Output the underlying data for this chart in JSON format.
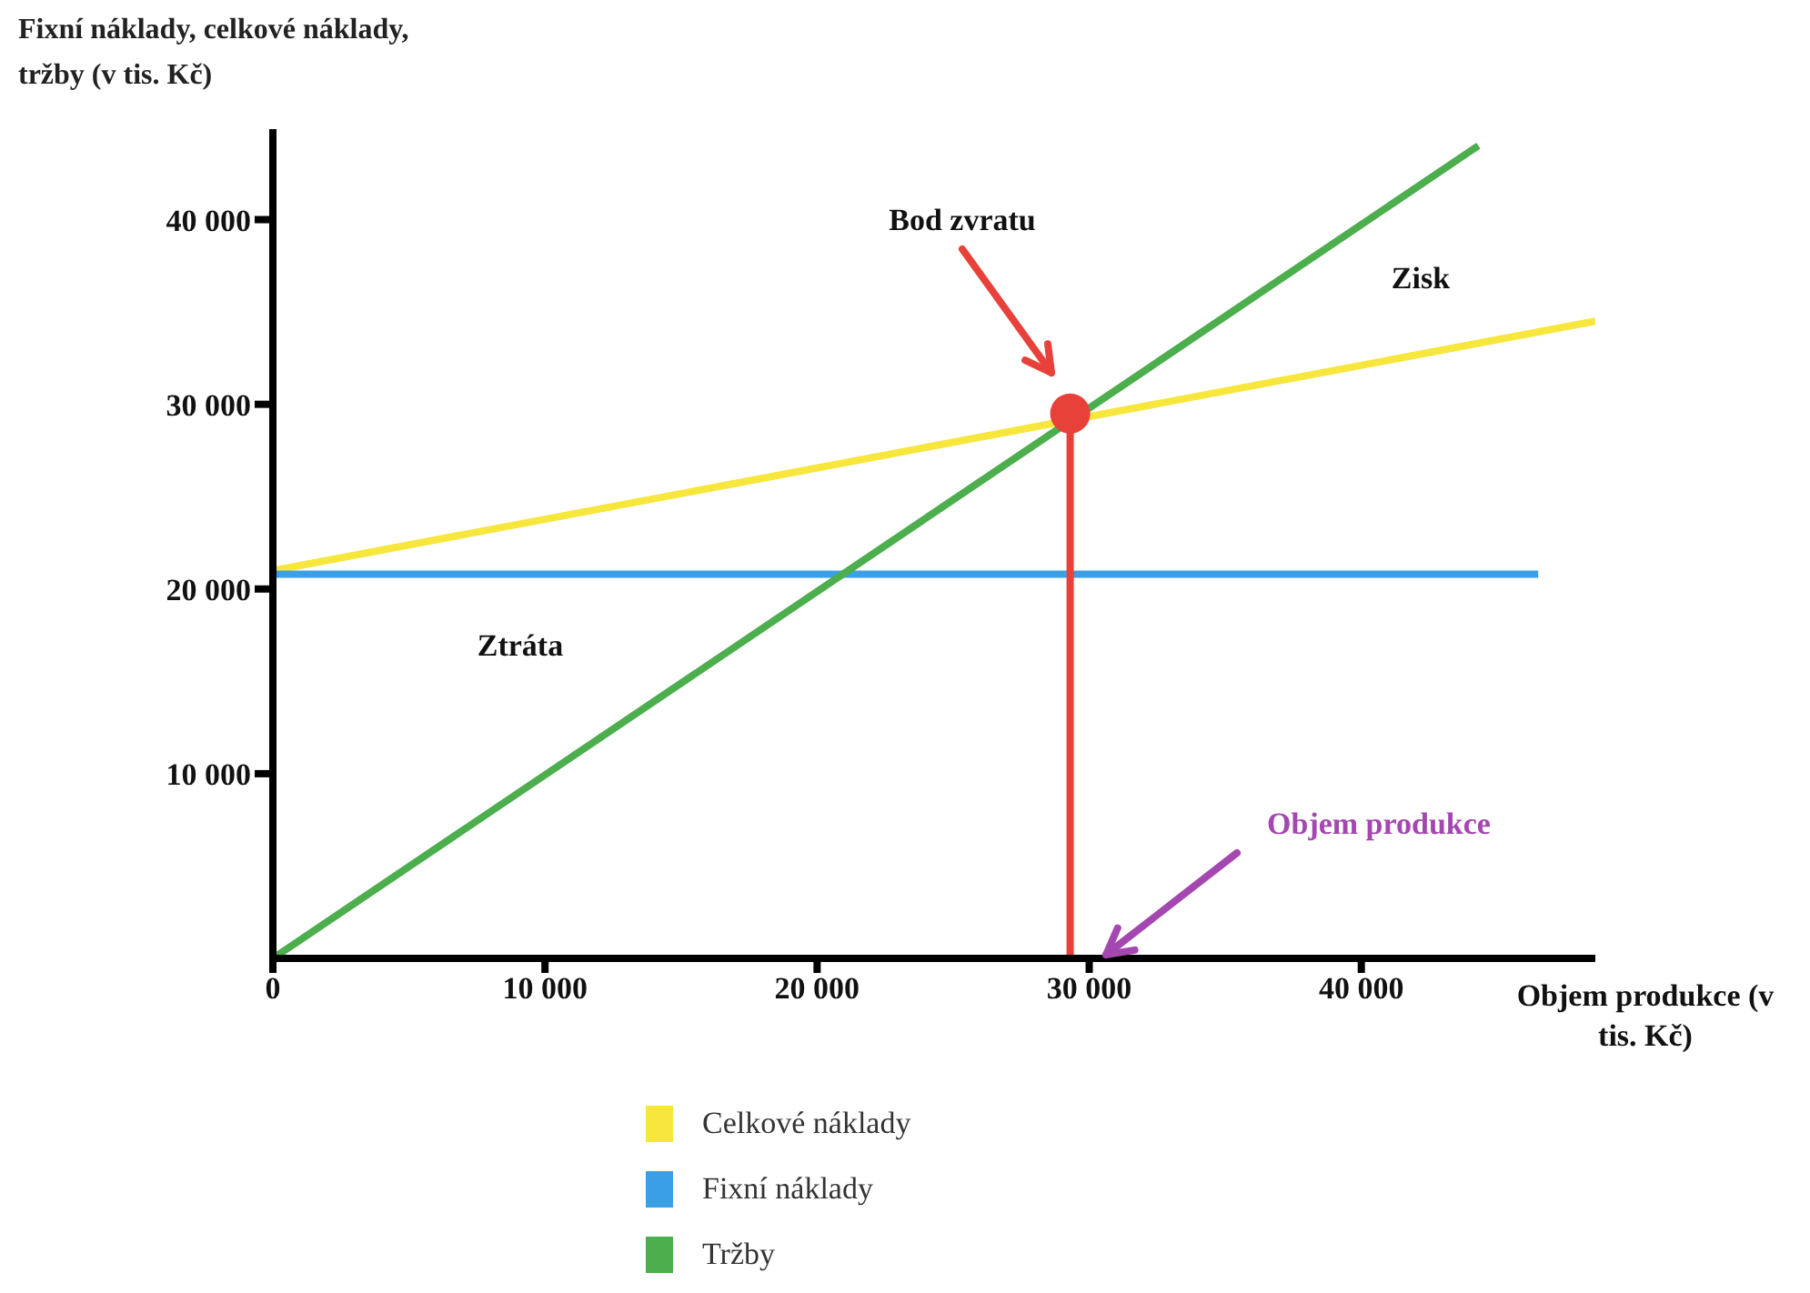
{
  "chart_data": {
    "type": "line",
    "ylabel": "Fixní náklady, celkové náklady, tržby (v tis. Kč)",
    "xlabel": "Objem produkce (v tis. Kč)",
    "xlim": [
      0,
      48600
    ],
    "ylim": [
      0,
      44900
    ],
    "xticks": [
      0,
      {
        "value": 10000,
        "label": "10 000"
      },
      {
        "value": 20000,
        "label": "20 000"
      },
      {
        "value": 30000,
        "label": "30 000"
      },
      {
        "value": 40000,
        "label": "40 000"
      }
    ],
    "yticks": [
      {
        "value": 10000,
        "label": "10 000"
      },
      {
        "value": 20000,
        "label": "20 000"
      },
      {
        "value": 30000,
        "label": "30 000"
      },
      {
        "value": 40000,
        "label": "40 000"
      }
    ],
    "legend": "bottom",
    "marker": "none",
    "series": [
      {
        "name": "Celkové náklady",
        "color": "#f7e63c",
        "x": [
          0,
          48600
        ],
        "values": [
          21000,
          34500
        ]
      },
      {
        "name": "Fixní náklady",
        "color": "#3b9fe6",
        "x": [
          0,
          46500
        ],
        "values": [
          20800,
          20800
        ]
      },
      {
        "name": "Tržby",
        "color": "#4cae4c",
        "x": [
          0,
          44300
        ],
        "values": [
          0,
          44000
        ]
      },
      {
        "type": "line",
        "color": "#e8413a",
        "x": [
          29300,
          29300
        ],
        "values": [
          0,
          29500
        ]
      },
      {
        "type": "scatter",
        "color": "#e8413a",
        "marker": "circle",
        "x": [
          29300
        ],
        "values": [
          29500
        ]
      }
    ],
    "annotations": [
      "Bod zvratu",
      "Zisk",
      "Ztráta",
      "Objem produkce"
    ]
  }
}
